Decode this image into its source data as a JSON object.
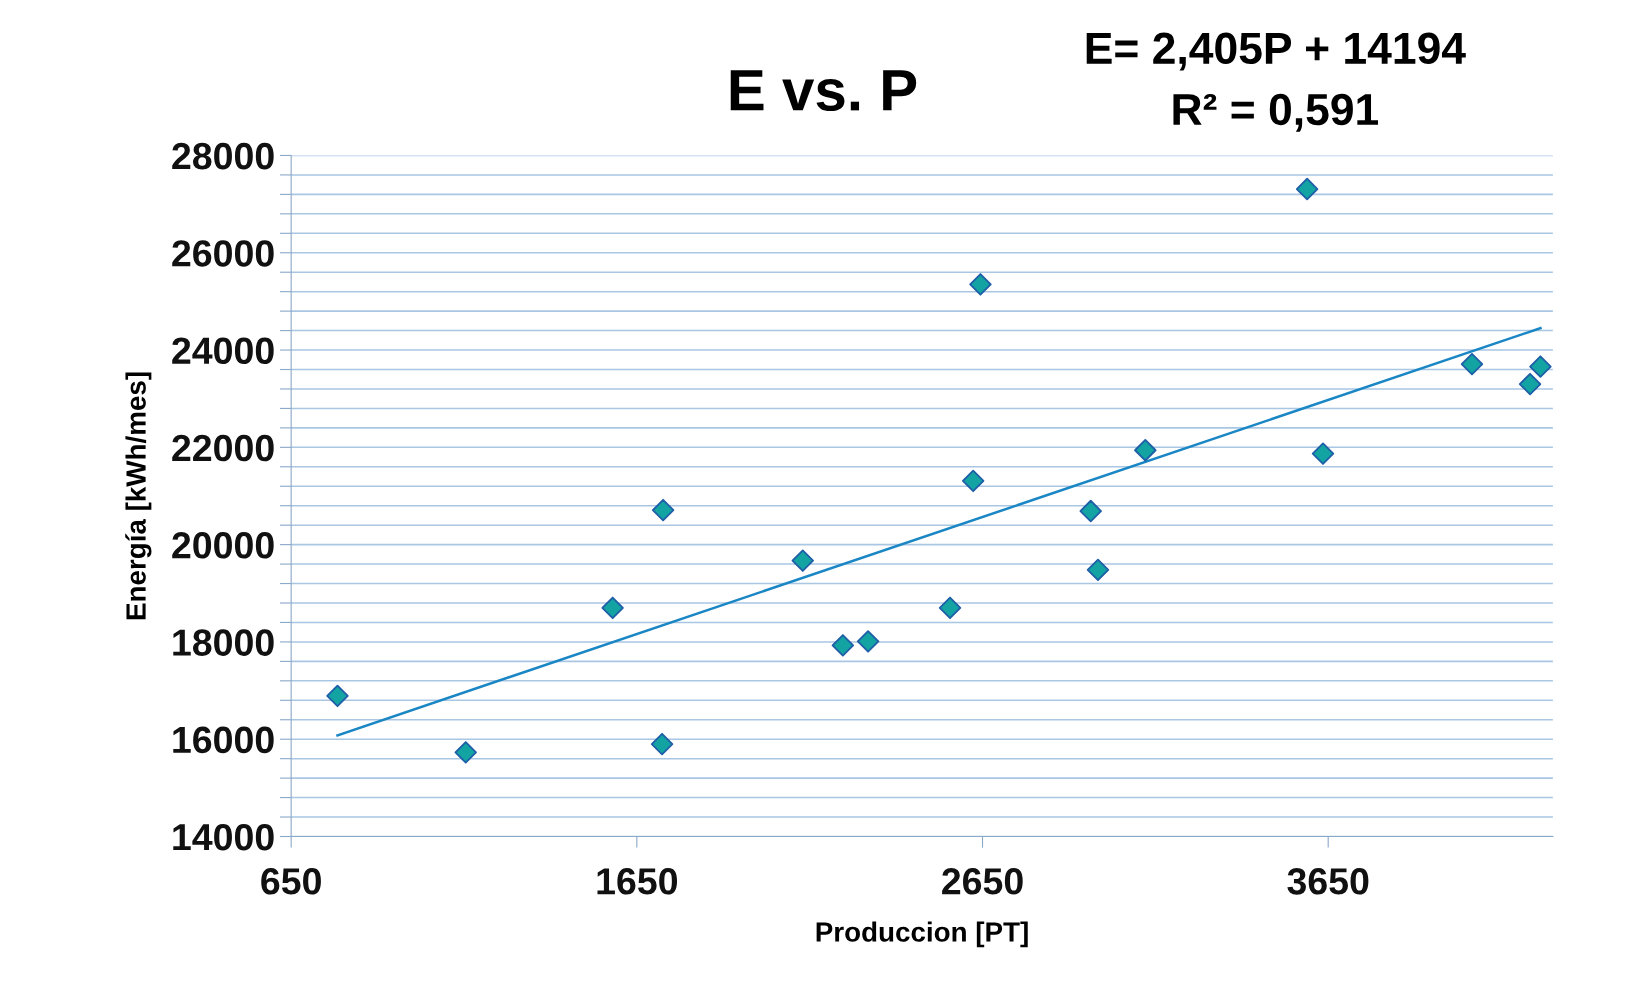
{
  "chart_data": {
    "type": "scatter",
    "title": "E vs. P",
    "xlabel": "Produccion [PT]",
    "ylabel": "Energía [kWh/mes]",
    "annotations": [
      "E= 2,405P + 14194",
      "R² = 0,591"
    ],
    "series": [
      {
        "color": "#13a3a3",
        "marker": "diamond",
        "x": [
          784,
          1155,
          1580,
          1726,
          1723,
          2130,
          2246,
          2319,
          2556,
          2623,
          2644,
          2963,
          2984,
          3121,
          3589,
          3635,
          4066,
          4234,
          4264
        ],
        "values": [
          16890,
          15730,
          18700,
          20710,
          15900,
          19670,
          17930,
          18010,
          18700,
          21310,
          25350,
          20690,
          19480,
          21940,
          27310,
          21870,
          23710,
          23300,
          23660
        ]
      },
      {
        "type": "line",
        "color": "#1a86c4",
        "marker": "none",
        "line_style": "solid",
        "x": [
          784,
          4264
        ],
        "values": [
          16080,
          24450
        ]
      }
    ],
    "xlim": [
      650,
      4300
    ],
    "xticks": [
      650,
      1650,
      2650,
      3650
    ],
    "ylim": [
      14000,
      28000
    ],
    "yticks": [
      14000,
      {
        "value": 14400,
        "label": null
      },
      {
        "value": 14800,
        "label": null
      },
      {
        "value": 15200,
        "label": null
      },
      {
        "value": 15600,
        "label": null
      },
      16000,
      {
        "value": 16400,
        "label": null
      },
      {
        "value": 16800,
        "label": null
      },
      {
        "value": 17200,
        "label": null
      },
      {
        "value": 17600,
        "label": null
      },
      18000,
      {
        "value": 18400,
        "label": null
      },
      {
        "value": 18800,
        "label": null
      },
      {
        "value": 19200,
        "label": null
      },
      {
        "value": 19600,
        "label": null
      },
      20000,
      {
        "value": 20400,
        "label": null
      },
      {
        "value": 20800,
        "label": null
      },
      {
        "value": 21200,
        "label": null
      },
      {
        "value": 21600,
        "label": null
      },
      22000,
      {
        "value": 22400,
        "label": null
      },
      {
        "value": 22800,
        "label": null
      },
      {
        "value": 23200,
        "label": null
      },
      {
        "value": 23600,
        "label": null
      },
      24000,
      {
        "value": 24400,
        "label": null
      },
      {
        "value": 24800,
        "label": null
      },
      {
        "value": 25200,
        "label": null
      },
      {
        "value": 25600,
        "label": null
      },
      26000,
      {
        "value": 26400,
        "label": null
      },
      {
        "value": 26800,
        "label": null
      },
      {
        "value": 27200,
        "label": null
      },
      {
        "value": 27600,
        "label": null
      },
      28000
    ],
    "grid": "y",
    "legend": false
  }
}
